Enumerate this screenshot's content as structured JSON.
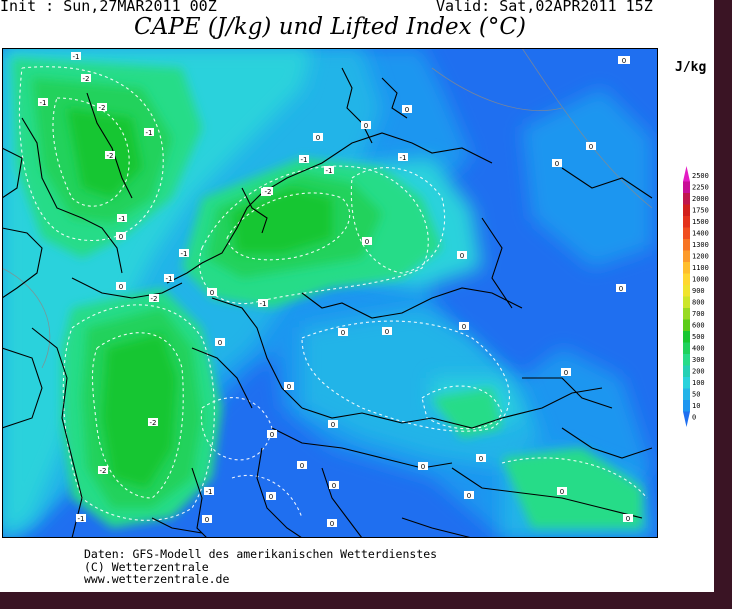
{
  "header": {
    "init_text": "Init : Sun,27MAR2011 00Z",
    "valid_text": "Valid: Sat,02APR2011 15Z"
  },
  "title": "CAPE (J/kg) und Lifted Index (°C)",
  "legend": {
    "unit": "J/kg",
    "levels": [
      "2500",
      "2250",
      "2000",
      "1750",
      "1500",
      "1400",
      "1300",
      "1200",
      "1100",
      "1000",
      "900",
      "800",
      "700",
      "600",
      "500",
      "400",
      "300",
      "200",
      "100",
      "50",
      "10",
      "0"
    ],
    "colors": [
      "#e41cc4",
      "#c80e96",
      "#c0164c",
      "#d2201c",
      "#e4321c",
      "#f04e20",
      "#f77424",
      "#fc9a2a",
      "#ffbe2c",
      "#ffd730",
      "#f0e42e",
      "#cce62a",
      "#98da22",
      "#5ccc18",
      "#18c630",
      "#20d25c",
      "#28dc88",
      "#26d0b4",
      "#2ad2dc",
      "#24b4e8",
      "#1e96f0",
      "#1f6ff0"
    ]
  },
  "lifted_index_labels": [
    {
      "text": "-1"
    },
    {
      "text": "-2"
    },
    {
      "text": "-1"
    },
    {
      "text": "-2"
    },
    {
      "text": "-2"
    },
    {
      "text": "-1"
    },
    {
      "text": "0"
    },
    {
      "text": "-1"
    },
    {
      "text": "-2"
    },
    {
      "text": "-1"
    },
    {
      "text": "0"
    },
    {
      "text": "-1"
    },
    {
      "text": "0"
    },
    {
      "text": "-1"
    },
    {
      "text": "-2"
    },
    {
      "text": "-1"
    },
    {
      "text": "-1"
    },
    {
      "text": "0"
    },
    {
      "text": "-1"
    },
    {
      "text": "-2"
    },
    {
      "text": "0"
    },
    {
      "text": "-2"
    },
    {
      "text": "-2"
    },
    {
      "text": "-1"
    },
    {
      "text": "-1"
    },
    {
      "text": "0"
    },
    {
      "text": "0"
    },
    {
      "text": "0"
    },
    {
      "text": "0"
    },
    {
      "text": "0"
    },
    {
      "text": "0"
    },
    {
      "text": "0"
    },
    {
      "text": "0"
    },
    {
      "text": "0"
    },
    {
      "text": "0"
    },
    {
      "text": "0"
    },
    {
      "text": "0"
    },
    {
      "text": "0"
    },
    {
      "text": "0"
    },
    {
      "text": "0"
    },
    {
      "text": "0"
    },
    {
      "text": "0"
    },
    {
      "text": "0"
    },
    {
      "text": "0"
    },
    {
      "text": "0"
    },
    {
      "text": "0"
    },
    {
      "text": "0"
    },
    {
      "text": "0"
    },
    {
      "text": "0"
    },
    {
      "text": "0"
    }
  ],
  "footer": {
    "line1": "Daten: GFS-Modell des amerikanischen Wetterdienstes",
    "line2": "(C) Wetterzentrale",
    "line3": "www.wetterzentrale.de"
  }
}
